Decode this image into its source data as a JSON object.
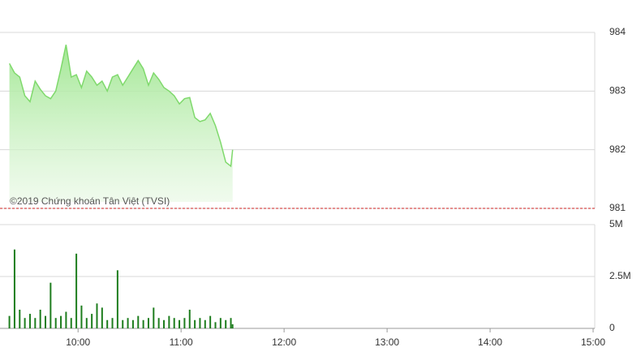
{
  "chart_data": [
    {
      "type": "area",
      "annotation": "©2019 Chứng khoán Tân Việt (TVSI)",
      "x": [
        "09:20",
        "09:23",
        "09:26",
        "09:29",
        "09:32",
        "09:35",
        "09:38",
        "09:41",
        "09:44",
        "09:47",
        "09:50",
        "09:53",
        "09:56",
        "09:59",
        "10:02",
        "10:05",
        "10:08",
        "10:11",
        "10:14",
        "10:17",
        "10:20",
        "10:23",
        "10:26",
        "10:29",
        "10:32",
        "10:35",
        "10:38",
        "10:41",
        "10:44",
        "10:47",
        "10:50",
        "10:53",
        "10:56",
        "10:59",
        "11:02",
        "11:05",
        "11:08",
        "11:11",
        "11:14",
        "11:17",
        "11:20",
        "11:23",
        "11:26",
        "11:29",
        "11:30"
      ],
      "values": [
        983.47,
        983.31,
        983.24,
        982.92,
        982.82,
        983.17,
        983.03,
        982.92,
        982.87,
        983.0,
        983.38,
        983.79,
        983.24,
        983.28,
        983.06,
        983.34,
        983.24,
        983.1,
        983.17,
        983.0,
        983.24,
        983.28,
        983.1,
        983.24,
        983.38,
        983.52,
        983.38,
        983.1,
        983.31,
        983.2,
        983.06,
        983.0,
        982.92,
        982.78,
        982.87,
        982.89,
        982.55,
        982.48,
        982.51,
        982.62,
        982.41,
        982.13,
        981.79,
        981.72,
        982.0
      ],
      "color": "#7fd96c",
      "reference_line": 981,
      "reference_color": "#cc2222",
      "xlim": [
        "09:15",
        "15:00"
      ],
      "ylim": [
        981,
        984
      ],
      "yticks": [
        981,
        982,
        983,
        984
      ],
      "grid": true
    },
    {
      "type": "bar",
      "x": [
        "09:20",
        "09:23",
        "09:26",
        "09:29",
        "09:32",
        "09:35",
        "09:38",
        "09:41",
        "09:44",
        "09:47",
        "09:50",
        "09:53",
        "09:56",
        "09:59",
        "10:02",
        "10:05",
        "10:08",
        "10:11",
        "10:14",
        "10:17",
        "10:20",
        "10:23",
        "10:26",
        "10:29",
        "10:32",
        "10:35",
        "10:38",
        "10:41",
        "10:44",
        "10:47",
        "10:50",
        "10:53",
        "10:56",
        "10:59",
        "11:02",
        "11:05",
        "11:08",
        "11:11",
        "11:14",
        "11:17",
        "11:20",
        "11:23",
        "11:26",
        "11:29",
        "11:30"
      ],
      "values": [
        600000,
        3800000,
        900000,
        500000,
        700000,
        500000,
        900000,
        600000,
        2200000,
        500000,
        600000,
        800000,
        500000,
        3600000,
        1100000,
        500000,
        700000,
        1200000,
        1000000,
        400000,
        500000,
        2800000,
        400000,
        500000,
        400000,
        600000,
        400000,
        500000,
        1000000,
        500000,
        400000,
        600000,
        500000,
        400000,
        500000,
        900000,
        400000,
        500000,
        400000,
        600000,
        300000,
        500000,
        400000,
        500000,
        200000
      ],
      "color": "#1e7d1e",
      "xlim": [
        "09:15",
        "15:00"
      ],
      "xticks": [
        "10:00",
        "11:00",
        "12:00",
        "13:00",
        "14:00",
        "15:00"
      ],
      "ylim": [
        0,
        5000000
      ],
      "yticks": [
        0,
        {
          "value": 2500000,
          "label": "2.5M"
        },
        {
          "value": 5000000,
          "label": "5M"
        }
      ],
      "grid": true
    }
  ]
}
